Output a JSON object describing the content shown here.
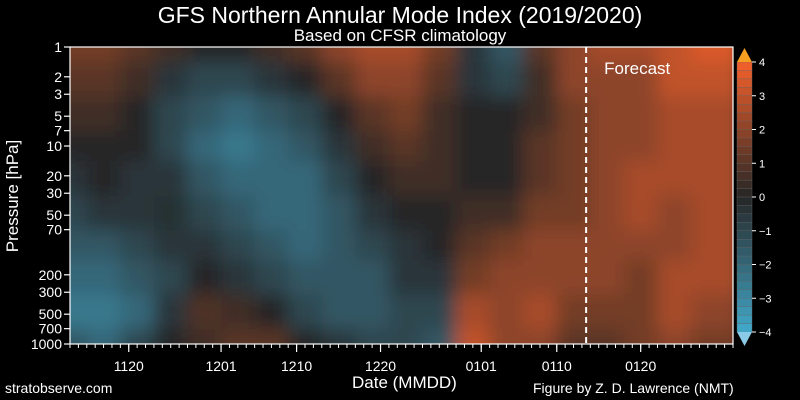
{
  "chart_data": {
    "type": "heatmap",
    "title": "GFS Northern Annular Mode Index (2019/2020)",
    "subtitle": "Based on CFSR climatology",
    "xlabel": "Date (MMDD)",
    "ylabel": "Pressure [hPa]",
    "x_start_day": -7,
    "x_end_day": 72,
    "x_ticks": [
      {
        "day": 0,
        "label": "1120"
      },
      {
        "day": 11,
        "label": "1201"
      },
      {
        "day": 20,
        "label": "1210"
      },
      {
        "day": 30,
        "label": "1220"
      },
      {
        "day": 42,
        "label": "0101"
      },
      {
        "day": 51,
        "label": "0110"
      },
      {
        "day": 61,
        "label": "0120"
      }
    ],
    "y_ticks": [
      1,
      2,
      3,
      5,
      7,
      10,
      20,
      30,
      50,
      70,
      200,
      300,
      500,
      700,
      1000
    ],
    "y_range": [
      1,
      1000
    ],
    "forecast_label": "Forecast",
    "forecast_start_day": 54.5,
    "colorbar": {
      "ticks": [
        "4",
        "3",
        "2",
        "1",
        "0",
        "−1",
        "−2",
        "−3",
        "−4"
      ],
      "range": [
        -4,
        4
      ]
    },
    "colors": {
      "neg": "#42a9cb",
      "zero": "#262626",
      "pos": "#f4612b"
    },
    "days": [
      -7,
      -3,
      1,
      5,
      9,
      13,
      17,
      21,
      25,
      29,
      33,
      37,
      41,
      45,
      49,
      53,
      57,
      61,
      65,
      69
    ],
    "levels": [
      1,
      2,
      5,
      10,
      20,
      50,
      100,
      200,
      500,
      1000
    ],
    "values": [
      [
        1.5,
        1,
        0.5,
        0,
        -0.5,
        -1,
        -1.5,
        -2,
        -2.5,
        -1.5
      ],
      [
        1.5,
        1,
        0.5,
        0,
        0,
        -0.5,
        -1.5,
        -2,
        -2.5,
        -2
      ],
      [
        1,
        0.5,
        0,
        0,
        -0.5,
        -0.5,
        -1,
        -1.5,
        -2,
        -1
      ],
      [
        0.5,
        -0.5,
        -1,
        -1,
        -0.5,
        -0.3,
        -0.5,
        -1,
        -0.5,
        0
      ],
      [
        0,
        -1,
        -1.5,
        -2,
        -1.5,
        -1,
        -0.5,
        0,
        0.8,
        0.5
      ],
      [
        0,
        -1,
        -2,
        -2.5,
        -2,
        -1.5,
        -1,
        -0.5,
        0.5,
        1
      ],
      [
        0.5,
        -0.5,
        -1.5,
        -2,
        -2,
        -2,
        -1.5,
        -1,
        0,
        1
      ],
      [
        1,
        0,
        -1,
        -1.5,
        -2,
        -2,
        -2,
        -1.5,
        -1,
        0
      ],
      [
        2,
        1,
        0,
        -0.5,
        -1,
        -1.5,
        -1.5,
        -1.5,
        -1.5,
        -0.5
      ],
      [
        2.5,
        2,
        1,
        0.5,
        0,
        -0.5,
        -1,
        -1.5,
        -1.5,
        -1
      ],
      [
        2.5,
        2,
        1.5,
        1,
        0.5,
        0,
        -0.5,
        -0.5,
        -1,
        -1
      ],
      [
        1.5,
        1,
        0.5,
        0.5,
        0.5,
        0,
        0,
        -0.5,
        -1,
        -1.5
      ],
      [
        -0.5,
        -0.5,
        0,
        0,
        0,
        0.5,
        1,
        1.5,
        2.5,
        3
      ],
      [
        -1.5,
        -1,
        0,
        0,
        0,
        0.5,
        1.5,
        2,
        2,
        2
      ],
      [
        1,
        0.5,
        0.5,
        1,
        1,
        1.5,
        2,
        2,
        2.5,
        2
      ],
      [
        2,
        2,
        1.5,
        1.5,
        1.5,
        1.5,
        2,
        2,
        1.5,
        1
      ],
      [
        2.5,
        2,
        2,
        2,
        2,
        2,
        2,
        2,
        1.5,
        1
      ],
      [
        2.5,
        2,
        2,
        2,
        2.5,
        2.5,
        2,
        1.5,
        1.5,
        1.5
      ],
      [
        3,
        3,
        2.5,
        2.5,
        2.5,
        2,
        2,
        2.5,
        2.5,
        2
      ],
      [
        3.5,
        3,
        2.5,
        2.5,
        2.5,
        2.5,
        2.5,
        2.5,
        2,
        1.5
      ]
    ]
  },
  "footer": {
    "left": "stratobserve.com",
    "right": "Figure by Z. D. Lawrence (NMT)"
  }
}
